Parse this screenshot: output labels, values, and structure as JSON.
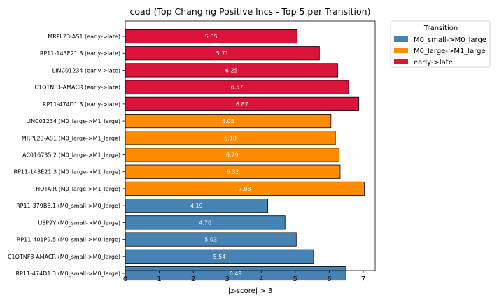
{
  "chart_data": {
    "type": "bar",
    "orientation": "horizontal",
    "title": "coad (Top Changing Positive lncs - Top 5 per Transition)",
    "xlabel": "|z-score| > 3",
    "ylabel": "",
    "xlim": [
      0,
      7.35
    ],
    "xticks": [
      0,
      1,
      2,
      3,
      4,
      5,
      6,
      7
    ],
    "grid": false,
    "legend_position": "upper-right-outside",
    "legend": {
      "title": "Transition",
      "entries": [
        {
          "label": "M0_small->M0_large",
          "color": "#4682b4"
        },
        {
          "label": "M0_large->M1_large",
          "color": "#ff8c00"
        },
        {
          "label": "early->late",
          "color": "#dc143c"
        }
      ]
    },
    "bars": [
      {
        "label": "MRPL23-AS1 (early->late)",
        "value": 5.05,
        "value_label": "5.05",
        "group": 2
      },
      {
        "label": "RP11-143E21.3 (early->late)",
        "value": 5.71,
        "value_label": "5.71",
        "group": 2
      },
      {
        "label": "LINC01234 (early->late)",
        "value": 6.25,
        "value_label": "6.25",
        "group": 2
      },
      {
        "label": "C1QTNF3-AMACR (early->late)",
        "value": 6.57,
        "value_label": "6.57",
        "group": 2
      },
      {
        "label": "RP11-474D1.3 (early->late)",
        "value": 6.87,
        "value_label": "6.87",
        "group": 2
      },
      {
        "label": "LINC01234 (M0_large->M1_large)",
        "value": 6.05,
        "value_label": "6.05",
        "group": 1
      },
      {
        "label": "MRPL23-AS1 (M0_large->M1_large)",
        "value": 6.18,
        "value_label": "6.18",
        "group": 1
      },
      {
        "label": "AC016735.2 (M0_large->M1_large)",
        "value": 6.29,
        "value_label": "6.29",
        "group": 1
      },
      {
        "label": "RP11-143E21.3 (M0_large->M1_large)",
        "value": 6.32,
        "value_label": "6.32",
        "group": 1
      },
      {
        "label": "HOTAIR (M0_large->M1_large)",
        "value": 7.03,
        "value_label": "7.03",
        "group": 1
      },
      {
        "label": "RP11-379B8.1 (M0_small->M0_large)",
        "value": 4.19,
        "value_label": "4.19",
        "group": 0
      },
      {
        "label": "USP9Y (M0_small->M0_large)",
        "value": 4.7,
        "value_label": "4.70",
        "group": 0
      },
      {
        "label": "RP11-401P9.5 (M0_small->M0_large)",
        "value": 5.03,
        "value_label": "5.03",
        "group": 0
      },
      {
        "label": "C1QTNF3-AMACR (M0_small->M0_large)",
        "value": 5.54,
        "value_label": "5.54",
        "group": 0
      },
      {
        "label": "RP11-474D1.3 (M0_small->M0_large)",
        "value": 6.49,
        "value_label": "6.49",
        "group": 0
      }
    ]
  }
}
